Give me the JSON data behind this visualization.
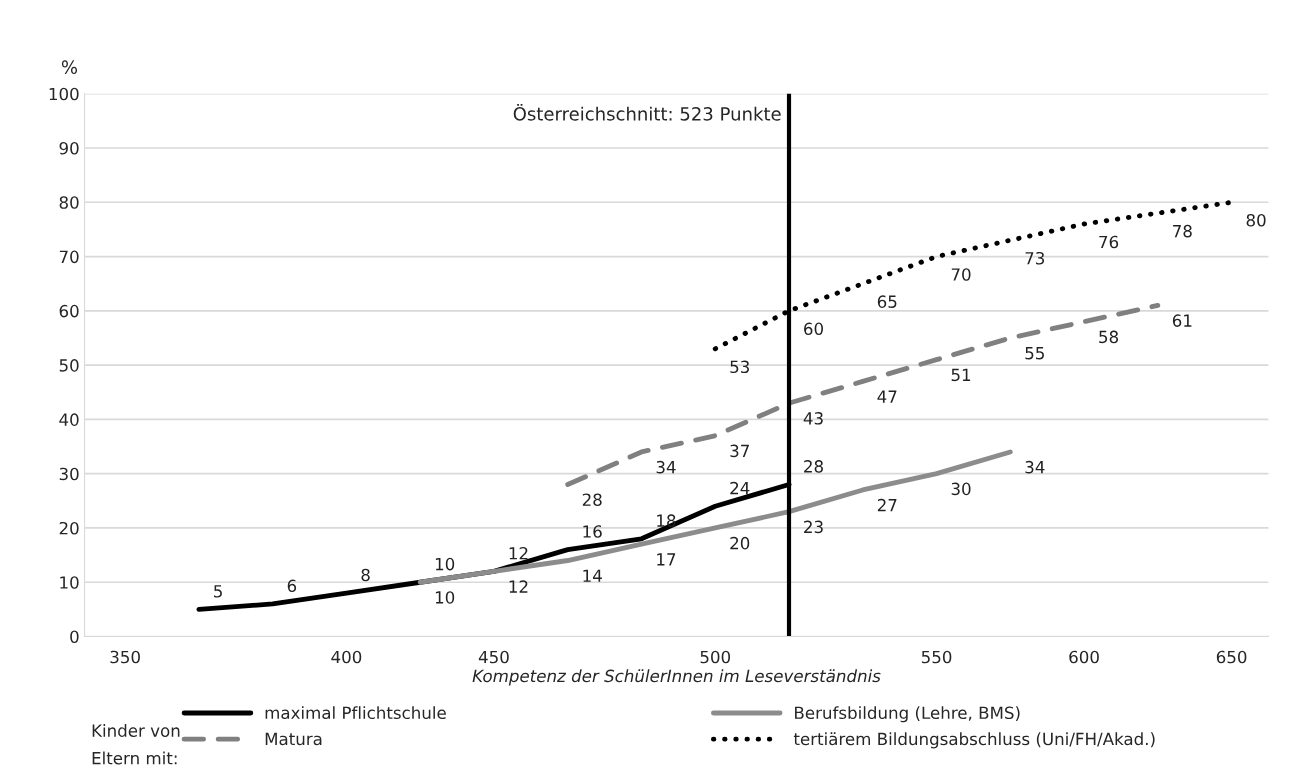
{
  "chart_data": {
    "type": "line",
    "xlabel": "Kompetenz der SchülerInnen im Leseverständnis",
    "ylabel": "%",
    "legend_title": "Kinder von\nEltern mit:",
    "categories": [
      "350",
      null,
      null,
      "400",
      null,
      "450",
      null,
      null,
      "500",
      null,
      null,
      "550",
      null,
      "600",
      null,
      "650"
    ],
    "series": [
      {
        "name": "maximal Pflichtschule",
        "color": "#000000",
        "line_style": "solid",
        "values": [
          null,
          5,
          6,
          8,
          10,
          12,
          16,
          18,
          24,
          28,
          null,
          null,
          null,
          null,
          null,
          null
        ]
      },
      {
        "name": "Berufsbildung (Lehre, BMS)",
        "color": "#8c8c8c",
        "line_style": "solid",
        "values": [
          null,
          null,
          null,
          null,
          10,
          12,
          14,
          17,
          20,
          23,
          27,
          30,
          34,
          null,
          null,
          null
        ]
      },
      {
        "name": "Matura",
        "color": "#808080",
        "line_style": "dashed",
        "values": [
          null,
          null,
          null,
          null,
          null,
          null,
          28,
          34,
          37,
          43,
          47,
          51,
          55,
          58,
          61,
          null
        ]
      },
      {
        "name": "tertiärem Bildungsabschluss (Uni/FH/Akad.)",
        "color": "#000000",
        "line_style": "dotted",
        "values": [
          null,
          null,
          null,
          null,
          null,
          null,
          null,
          null,
          53,
          60,
          65,
          70,
          73,
          76,
          78,
          80
        ]
      }
    ],
    "annotations": [
      "Österreichschnitt: 523 Punkte"
    ],
    "ylim": [
      0,
      100
    ],
    "yticks": [
      0,
      10,
      20,
      30,
      40,
      50,
      60,
      70,
      80,
      90,
      100
    ],
    "grid": "y",
    "legend": "bottom",
    "data_labels": true
  }
}
